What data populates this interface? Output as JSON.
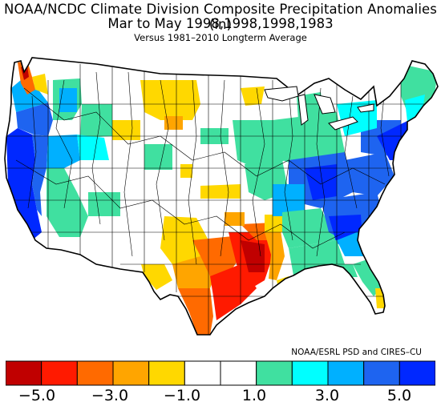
{
  "title": {
    "line1": "NOAA/NCDC Climate Division Composite Precipitation Anomalies (in)",
    "line2": "Mar to May  1998,1998,1998,1983",
    "line3": "Versus 1981–2010 Longterm Average"
  },
  "credit": "NOAA/ESRL PSD and CIRES–CU",
  "colorbar": {
    "colors": [
      "#c00000",
      "#ff1a00",
      "#ff6a00",
      "#ffa500",
      "#ffd800",
      "#ffffff",
      "#ffffff",
      "#40e0a0",
      "#00ffff",
      "#00b0ff",
      "#1e64f0",
      "#0028ff"
    ],
    "tick_labels": [
      "−5.0",
      "−3.0",
      "−1.0",
      "1.0",
      "3.0",
      "5.0"
    ]
  },
  "legend_colors": {
    "dark_red": "#c00000",
    "red": "#ff1a00",
    "orange_red": "#ff6a00",
    "orange": "#ffa500",
    "yellow": "#ffd800",
    "white": "#ffffff",
    "sea_green": "#40e0a0",
    "cyan": "#00ffff",
    "sky_blue": "#00b0ff",
    "blue": "#1e64f0",
    "deep_blue": "#0028ff"
  }
}
